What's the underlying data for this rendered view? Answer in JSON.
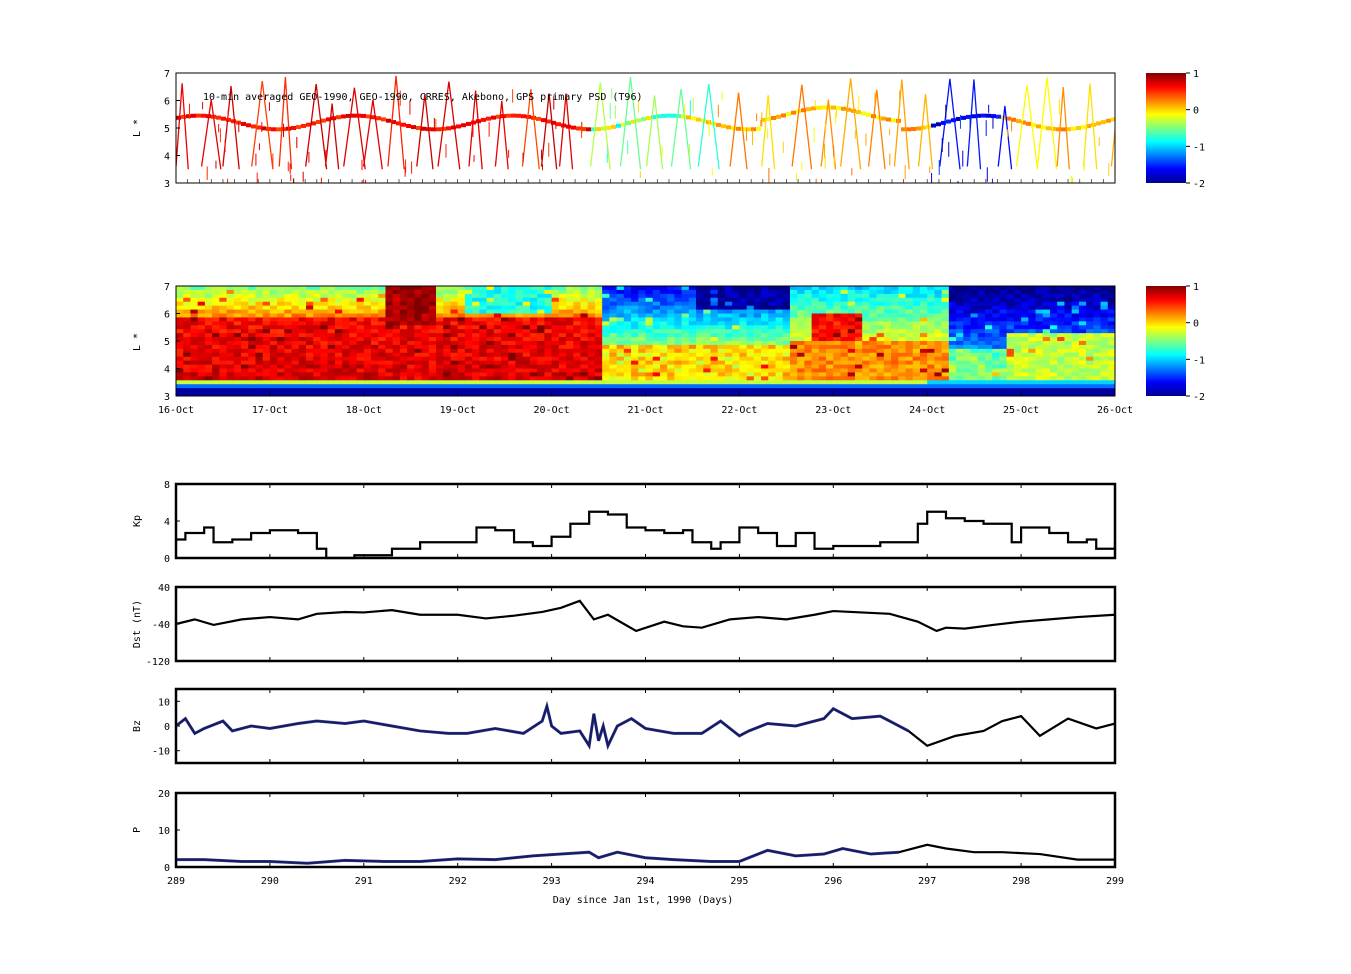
{
  "chart_data": [
    {
      "type": "heatmap",
      "panel": "top",
      "annotation": "10-min averaged GEO-1990, GEO-1990, CRRES, Akebono, GPS  primary PSD (T96)",
      "ylabel": "L *",
      "ylim": [
        3,
        7
      ],
      "yticks": [
        "3",
        "4",
        "5",
        "6",
        "7"
      ],
      "xlim": [
        289,
        299
      ],
      "colorbar": {
        "ticks": [
          "1",
          "0",
          "-1",
          "-2"
        ],
        "range": [
          -2,
          1
        ],
        "colormap": "jet"
      },
      "description_values": {
        "orbit_tracks": "sawtooth satellite tracks between L*=3.5 and L*=6.5",
        "geo_track_L": 5.3
      }
    },
    {
      "type": "heatmap",
      "panel": "reanalysis",
      "ylabel": "L *",
      "ylim": [
        3,
        7
      ],
      "yticks": [
        "3",
        "4",
        "5",
        "6",
        "7"
      ],
      "x_categories": [
        "16-Oct",
        "17-Oct",
        "18-Oct",
        "19-Oct",
        "20-Oct",
        "21-Oct",
        "22-Oct",
        "23-Oct",
        "24-Oct",
        "25-Oct",
        "26-Oct"
      ],
      "colorbar": {
        "ticks": [
          "1",
          "0",
          "-1",
          "-2"
        ],
        "range": [
          -2,
          1
        ],
        "colormap": "jet"
      }
    },
    {
      "type": "line",
      "panel": "kp",
      "ylabel": "Kp",
      "ylim": [
        0,
        8
      ],
      "yticks": [
        "0",
        "4",
        "8"
      ],
      "xlim": [
        289,
        299
      ],
      "series": [
        {
          "x": [
            289.0,
            289.1,
            289.3,
            289.4,
            289.6,
            289.8,
            290.0,
            290.3,
            290.5,
            290.6,
            290.9,
            291.3,
            291.6,
            291.9,
            292.2,
            292.4,
            292.6,
            292.8,
            293.0,
            293.2,
            293.4,
            293.6,
            293.8,
            294.0,
            294.2,
            294.4,
            294.5,
            294.7,
            294.8,
            295.0,
            295.2,
            295.4,
            295.6,
            295.8,
            296.0,
            296.3,
            296.5,
            296.7,
            296.9,
            297.0,
            297.2,
            297.4,
            297.6,
            297.8,
            297.9,
            298.0,
            298.3,
            298.5,
            298.7,
            298.8,
            299.0
          ],
          "y": [
            2.0,
            2.7,
            3.3,
            1.7,
            2.0,
            2.7,
            3.0,
            2.7,
            1.0,
            0.0,
            0.3,
            1.0,
            1.7,
            1.7,
            3.3,
            3.0,
            1.7,
            1.3,
            2.3,
            3.7,
            5.0,
            4.7,
            3.3,
            3.0,
            2.7,
            3.0,
            1.7,
            1.0,
            1.7,
            3.3,
            2.7,
            1.3,
            2.7,
            1.0,
            1.3,
            1.3,
            1.7,
            1.7,
            3.7,
            5.0,
            4.3,
            4.0,
            3.7,
            3.7,
            1.7,
            3.3,
            2.7,
            1.7,
            2.0,
            1.0,
            1.7
          ]
        }
      ]
    },
    {
      "type": "line",
      "panel": "dst",
      "ylabel": "Dst (nT)",
      "ylim": [
        -120,
        40
      ],
      "yticks": [
        "-120",
        "-40",
        "40"
      ],
      "xlim": [
        289,
        299
      ],
      "series": [
        {
          "x": [
            289.0,
            289.2,
            289.4,
            289.7,
            290.0,
            290.3,
            290.5,
            290.8,
            291.0,
            291.3,
            291.6,
            292.0,
            292.3,
            292.6,
            292.9,
            293.1,
            293.3,
            293.45,
            293.6,
            293.9,
            294.2,
            294.4,
            294.6,
            294.9,
            295.2,
            295.5,
            295.8,
            296.0,
            296.3,
            296.6,
            296.9,
            297.1,
            297.2,
            297.4,
            297.7,
            298.0,
            298.3,
            298.6,
            299.0
          ],
          "y": [
            -40,
            -30,
            -42,
            -30,
            -25,
            -30,
            -18,
            -14,
            -15,
            -10,
            -20,
            -20,
            -28,
            -22,
            -14,
            -5,
            10,
            -30,
            -20,
            -55,
            -35,
            -45,
            -48,
            -30,
            -25,
            -30,
            -20,
            -12,
            -15,
            -18,
            -35,
            -55,
            -48,
            -50,
            -42,
            -35,
            -30,
            -25,
            -20
          ]
        }
      ]
    },
    {
      "type": "line",
      "panel": "bz",
      "ylabel": "Bz",
      "ylim": [
        -15,
        15
      ],
      "yticks": [
        "-10",
        "0",
        "10"
      ],
      "xlim": [
        289,
        299
      ],
      "series": [
        {
          "x": [
            289.0,
            289.1,
            289.2,
            289.3,
            289.5,
            289.6,
            289.8,
            290.0,
            290.3,
            290.5,
            290.8,
            291.0,
            291.3,
            291.6,
            291.9,
            292.1,
            292.4,
            292.7,
            292.9,
            292.95,
            293.0,
            293.1,
            293.3,
            293.4,
            293.45,
            293.5,
            293.55,
            293.6,
            293.7,
            293.85,
            294.0,
            294.3,
            294.6,
            294.8,
            295.0,
            295.1,
            295.3,
            295.6,
            295.9,
            296.0,
            296.2,
            296.5,
            296.8,
            297.0,
            297.3,
            297.6,
            297.8,
            298.0,
            298.2,
            298.5,
            298.8,
            299.0
          ],
          "y": [
            0,
            3,
            -3,
            -1,
            2,
            -2,
            0,
            -1,
            1,
            2,
            1,
            2,
            0,
            -2,
            -3,
            -3,
            -1,
            -3,
            2,
            8,
            0,
            -3,
            -2,
            -8,
            5,
            -6,
            0,
            -8,
            0,
            3,
            -1,
            -3,
            -3,
            2,
            -4,
            -2,
            1,
            0,
            3,
            7,
            3,
            4,
            -2,
            -8,
            -4,
            -2,
            2,
            4,
            -4,
            3,
            -1,
            1
          ]
        }
      ]
    },
    {
      "type": "line",
      "panel": "p",
      "ylabel": "P",
      "ylim": [
        0,
        20
      ],
      "yticks": [
        "0",
        "10",
        "20"
      ],
      "xlim": [
        289,
        299
      ],
      "xticks": [
        "289",
        "290",
        "291",
        "292",
        "293",
        "294",
        "295",
        "296",
        "297",
        "298",
        "299"
      ],
      "xlabel": "Day since Jan 1st, 1990 (Days)",
      "series": [
        {
          "x": [
            289.0,
            289.3,
            289.7,
            290.0,
            290.4,
            290.8,
            291.2,
            291.6,
            292.0,
            292.4,
            292.8,
            293.1,
            293.4,
            293.5,
            293.7,
            294.0,
            294.3,
            294.7,
            295.0,
            295.3,
            295.6,
            295.9,
            296.1,
            296.4,
            296.7,
            297.0,
            297.2,
            297.5,
            297.8,
            298.2,
            298.6,
            299.0
          ],
          "y": [
            2,
            2,
            1.5,
            1.5,
            1,
            1.8,
            1.5,
            1.5,
            2.2,
            2,
            3,
            3.5,
            4,
            2.5,
            4,
            2.5,
            2,
            1.5,
            1.5,
            4.5,
            3,
            3.5,
            5,
            3.5,
            4,
            6,
            5,
            4,
            4,
            3.5,
            2,
            2
          ]
        }
      ]
    }
  ]
}
